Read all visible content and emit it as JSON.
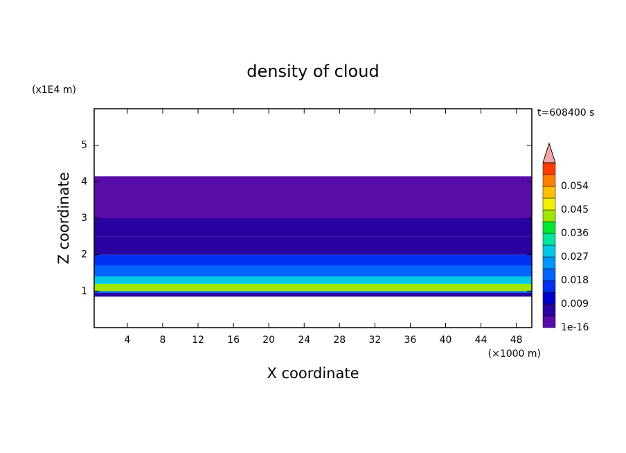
{
  "chart_data": {
    "type": "layers",
    "title": "density of cloud",
    "x_label": "X coordinate",
    "y_label": "Z coordinate",
    "x_unit": "(×1000 m)",
    "y_unit": "(x1E4 m)",
    "time_label": "t=608400 s",
    "xlim": [
      0.25,
      49.75
    ],
    "xticks": [
      4,
      8,
      12,
      16,
      20,
      24,
      28,
      32,
      36,
      40,
      44,
      48
    ],
    "ylim": [
      0,
      6
    ],
    "yticks": [
      1,
      2,
      3,
      4,
      5
    ],
    "z_edges": [
      0.85,
      0.95,
      1.0,
      1.2,
      1.4,
      1.7,
      2.0,
      2.5,
      3.0,
      4.15
    ],
    "density": [
      0.005,
      0.02,
      0.045,
      0.03,
      0.022,
      0.015,
      0.009,
      0.005,
      0.002
    ],
    "colorbar": {
      "clim": [
        1e-16,
        0.063
      ],
      "ticks": [
        1e-16,
        0.009,
        0.018,
        0.027,
        0.036,
        0.045,
        0.054
      ],
      "colors": [
        "#5a0ca8",
        "#2a00a0",
        "#0000c8",
        "#0030f0",
        "#0064ff",
        "#0096ff",
        "#00c8e6",
        "#00e6a0",
        "#00e632",
        "#a0e600",
        "#f0f000",
        "#ffc000",
        "#ff8000",
        "#ff3c00"
      ],
      "over_color": "#f4a8a8"
    }
  }
}
